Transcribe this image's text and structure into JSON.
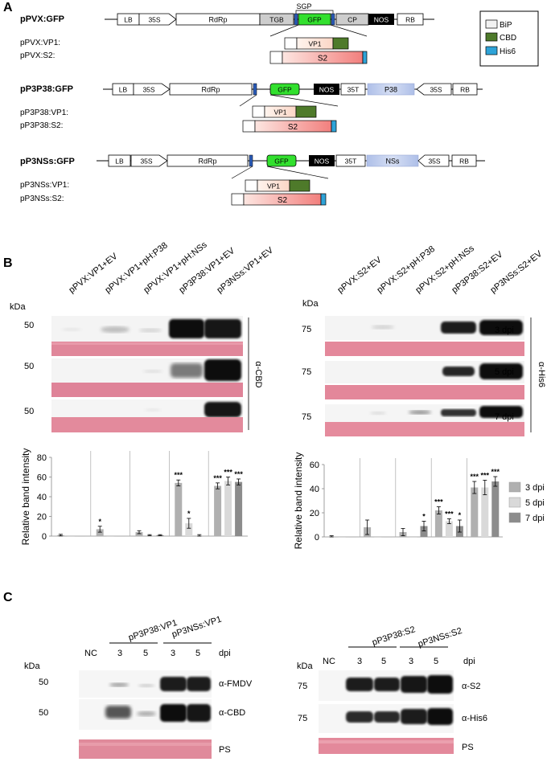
{
  "panel_a": {
    "label": "A",
    "constructs": [
      {
        "title": "pPVX:GFP",
        "elements": [
          "LB",
          "35S",
          "RdRp",
          "TGB",
          "GFP",
          "CP",
          "NOS",
          "RB"
        ],
        "sgp": "SGP",
        "inserts": [
          "pPVX:VP1:",
          "pPVX:S2:"
        ]
      },
      {
        "title": "pP3P38:GFP",
        "elements": [
          "LB",
          "35S",
          "RdRp",
          "GFP",
          "NOS",
          "35T",
          "P38",
          "35S",
          "RB"
        ],
        "inserts": [
          "pP3P38:VP1:",
          "pP3P38:S2:"
        ]
      },
      {
        "title": "pP3NSs:GFP",
        "elements": [
          "LB",
          "35S",
          "RdRp",
          "GFP",
          "NOS",
          "35T",
          "NSs",
          "35S",
          "RB"
        ],
        "inserts": [
          "pP3NSs:VP1:",
          "pP3NSs:S2:"
        ]
      }
    ],
    "insert_labels": {
      "vp1": "VP1",
      "s2": "S2"
    },
    "legend": [
      {
        "name": "BiP",
        "color": "#f2f2f2"
      },
      {
        "name": "CBD",
        "color": "#4e7a2a"
      },
      {
        "name": "His6",
        "color": "#2ea3d8"
      }
    ],
    "colors": {
      "gfp": "#32e02e",
      "tgb_cp": "#cdcdcd",
      "nos": "#000000",
      "p38": "#c4d1ee",
      "vp1_fill": "#fde3d6",
      "s2_fill": "#f49896"
    }
  },
  "panel_b": {
    "label": "B",
    "left": {
      "lanes": [
        "pPVX:VP1+EV",
        "pPVX:VP1+pH:P38",
        "pPVX:VP1+pH:NSs",
        "pP3P38:VP1+EV",
        "pP3NSs:VP1+EV"
      ],
      "kda_title": "kDa",
      "markers": [
        "50",
        "50",
        "50"
      ],
      "antibody": "α-CBD"
    },
    "right": {
      "lanes": [
        "pPVX:S2+EV",
        "pPVX:S2+pH:P38",
        "pPVX:S2+pH:NSs",
        "pP3P38:S2+EV",
        "pP3NSs:S2+EV"
      ],
      "kda_title": "kDa",
      "markers": [
        "75",
        "75",
        "75"
      ],
      "timepoints": [
        "3 dpi",
        "5 dpi",
        "7 dpi"
      ],
      "antibody": "α-His6"
    }
  },
  "chart_data": [
    {
      "type": "bar",
      "ylabel": "Relative band intensity",
      "ylim": [
        0,
        80
      ],
      "yticks": [
        0,
        20,
        40,
        60,
        80
      ],
      "categories": [
        "pPVX:VP1+EV",
        "pPVX:VP1+pH:P38",
        "pPVX:VP1+pH:NSs",
        "pP3P38:VP1+EV",
        "pP3NSs:VP1+EV"
      ],
      "series": [
        {
          "name": "3 dpi",
          "values": [
            1,
            7,
            4,
            54,
            51
          ],
          "errors": [
            0.8,
            3,
            1.5,
            3,
            3
          ],
          "sig": [
            "",
            "*",
            "",
            "***",
            "***"
          ],
          "color": "#b0b0b0"
        },
        {
          "name": "5 dpi",
          "values": [
            0,
            0,
            1,
            13,
            56
          ],
          "errors": [
            0,
            0,
            0.5,
            5,
            4
          ],
          "sig": [
            "",
            "",
            "",
            "*",
            "***"
          ],
          "color": "#d9d9d9"
        },
        {
          "name": "7 dpi",
          "values": [
            0,
            0,
            1,
            0,
            55
          ],
          "errors": [
            0,
            0,
            0.5,
            1.5,
            3
          ],
          "sig": [
            "",
            "",
            "",
            "",
            "***"
          ],
          "color": "#8c8c8c"
        }
      ],
      "grid": false
    },
    {
      "type": "bar",
      "ylabel": "Relative band intensity",
      "ylim": [
        0,
        60
      ],
      "yticks": [
        0,
        20,
        40,
        60
      ],
      "categories": [
        "pPVX:S2+EV",
        "pPVX:S2+pH:P38",
        "pPVX:S2+pH:NSs",
        "pP3P38:S2+EV",
        "pP3NSs:S2+EV"
      ],
      "series": [
        {
          "name": "3 dpi",
          "values": [
            0,
            8,
            4,
            22,
            41
          ],
          "errors": [
            1,
            6,
            3,
            3,
            5
          ],
          "sig": [
            "",
            "",
            "",
            "***",
            "***"
          ],
          "color": "#b0b0b0"
        },
        {
          "name": "5 dpi",
          "values": [
            0,
            0,
            0,
            13,
            41
          ],
          "errors": [
            0,
            0,
            0,
            2,
            6
          ],
          "sig": [
            "",
            "",
            "",
            "***",
            "***"
          ],
          "color": "#d9d9d9"
        },
        {
          "name": "7 dpi",
          "values": [
            0,
            0,
            9,
            9,
            46
          ],
          "errors": [
            0,
            0,
            4,
            5,
            4
          ],
          "sig": [
            "",
            "",
            "*",
            "*",
            "***"
          ],
          "color": "#8c8c8c"
        }
      ],
      "legend_position": "right",
      "grid": false
    }
  ],
  "panel_c": {
    "label": "C",
    "left": {
      "groups": [
        "pP3P38:VP1",
        "pP3NSs:VP1"
      ],
      "lanes": [
        "NC",
        "3",
        "5",
        "3",
        "5"
      ],
      "dpi": "dpi",
      "kda_title": "kDa",
      "markers": [
        "50",
        "50"
      ],
      "rows": [
        "α-FMDV",
        "α-CBD",
        "PS"
      ]
    },
    "right": {
      "groups": [
        "pP3P38:S2",
        "pP3NSs:S2"
      ],
      "lanes": [
        "NC",
        "3",
        "5",
        "3",
        "5"
      ],
      "dpi": "dpi",
      "kda_title": "kDa",
      "markers": [
        "75",
        "75"
      ],
      "rows": [
        "α-S2",
        "α-His6",
        "PS"
      ]
    }
  }
}
